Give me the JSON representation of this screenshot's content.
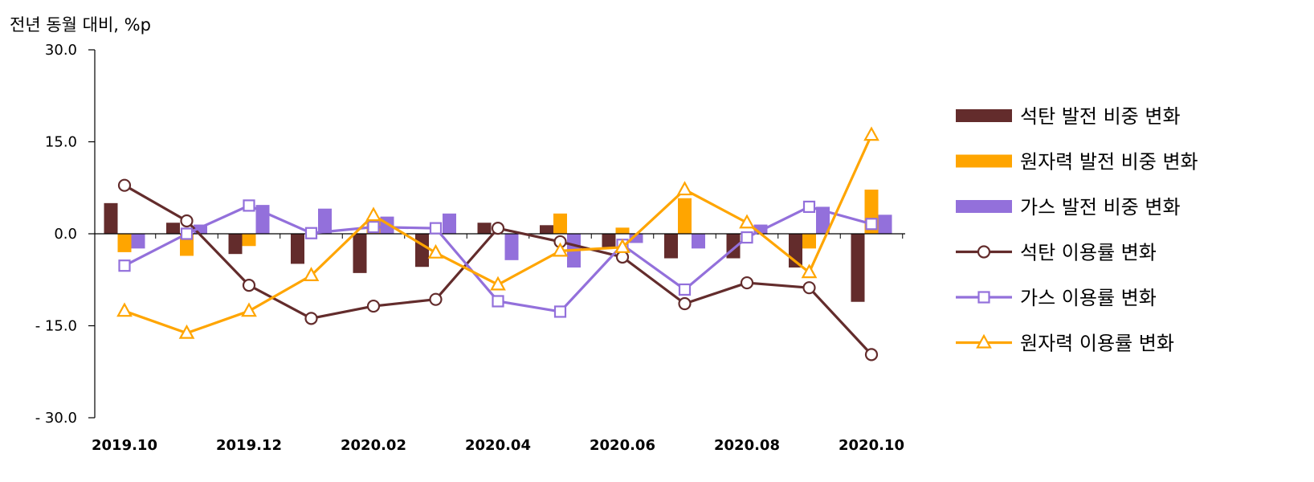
{
  "chart_data": {
    "type": "bar+line",
    "ylabel": "전년 동월 대비, %p",
    "ylim": [
      -30,
      30
    ],
    "y_ticks": [
      30,
      15,
      0,
      -15,
      -30
    ],
    "y_tick_labels": [
      "30.0",
      "15.0",
      "0.0",
      "- 15.0",
      "- 30.0"
    ],
    "x": [
      "2019.10",
      "2019.11",
      "2019.12",
      "2020.01",
      "2020.02",
      "2020.03",
      "2020.04",
      "2020.05",
      "2020.06",
      "2020.07",
      "2020.08",
      "2020.09",
      "2020.10"
    ],
    "x_tick_labels": [
      "2019.10",
      "",
      "2019.12",
      "",
      "2020.02",
      "",
      "2020.04",
      "",
      "2020.06",
      "",
      "2020.08",
      "",
      "2020.10"
    ],
    "series": [
      {
        "name": "석탄 발전 비중 변화",
        "kind": "bar",
        "color": "#632c2c",
        "values": [
          5.0,
          1.8,
          -3.3,
          -4.9,
          -6.4,
          -5.4,
          1.8,
          1.4,
          -2.2,
          -4.0,
          -4.0,
          -5.5,
          -11.1
        ]
      },
      {
        "name": "원자력 발전 비중 변화",
        "kind": "bar",
        "color": "#ffa500",
        "values": [
          -3.0,
          -3.6,
          -2.0,
          0.0,
          2.5,
          0.0,
          0.0,
          3.3,
          1.0,
          5.8,
          0.0,
          -2.4,
          7.2
        ]
      },
      {
        "name": "가스 발전 비중 변화",
        "kind": "bar",
        "color": "#9370db",
        "values": [
          -2.4,
          1.5,
          4.7,
          4.1,
          2.8,
          3.3,
          -4.3,
          -5.5,
          -1.5,
          -2.4,
          1.5,
          4.4,
          3.1
        ]
      },
      {
        "name": "석탄 이용률 변화",
        "kind": "line",
        "marker": "circle",
        "color": "#632c2c",
        "values": [
          7.9,
          2.1,
          -8.4,
          -13.8,
          -11.8,
          -10.7,
          0.9,
          -1.3,
          -3.8,
          -11.4,
          -8.0,
          -8.8,
          -19.7
        ]
      },
      {
        "name": "가스 이용률 변화",
        "kind": "line",
        "marker": "square",
        "color": "#9370db",
        "values": [
          -5.2,
          0.0,
          4.6,
          0.1,
          1.1,
          0.9,
          -11.0,
          -12.7,
          -1.8,
          -9.1,
          -0.6,
          4.4,
          1.6
        ]
      },
      {
        "name": "원자력 이용률 변화",
        "kind": "line",
        "marker": "triangle",
        "color": "#ffa500",
        "values": [
          -12.6,
          -16.2,
          -12.6,
          -6.8,
          3.0,
          -3.1,
          -8.3,
          -2.8,
          -2.2,
          7.2,
          1.8,
          -6.3,
          16.1
        ]
      }
    ],
    "grid": false,
    "legend": "right"
  }
}
